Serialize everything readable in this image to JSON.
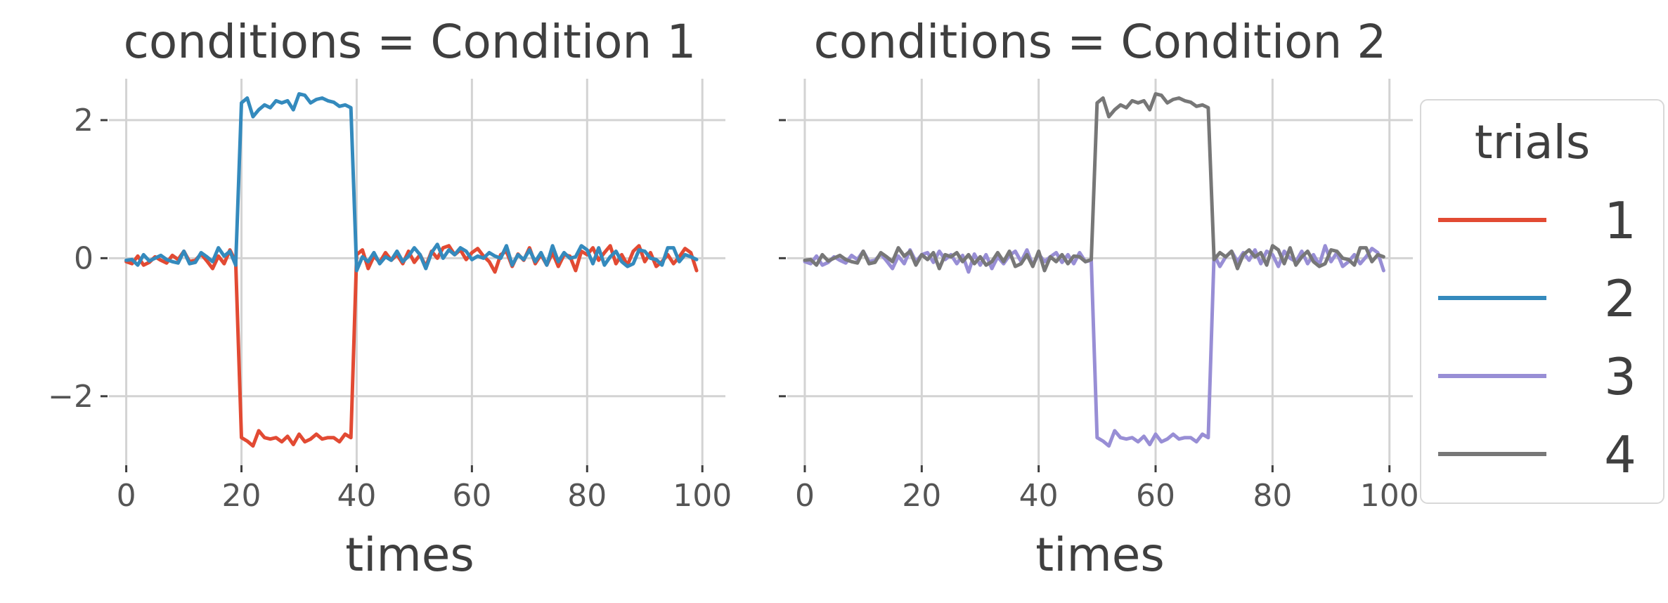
{
  "chart_data": [
    {
      "type": "line",
      "title": "conditions = Condition 1",
      "xlabel": "times",
      "ylabel": "",
      "xlim": [
        -3,
        104
      ],
      "ylim": [
        -3.0,
        2.6
      ],
      "xticks": [
        0,
        20,
        40,
        60,
        80,
        100
      ],
      "xtick_labels": [
        "0",
        "20",
        "40",
        "60",
        "80",
        "100"
      ],
      "yticks": [
        -2,
        0,
        2
      ],
      "ytick_labels": [
        "−2",
        "0",
        "2"
      ],
      "grid": true,
      "series": [
        {
          "name": "1",
          "color": "#e24a33",
          "x": [
            0,
            1,
            2,
            3,
            4,
            5,
            6,
            7,
            8,
            9,
            10,
            11,
            12,
            13,
            14,
            15,
            16,
            17,
            18,
            19,
            20,
            21,
            22,
            23,
            24,
            25,
            26,
            27,
            28,
            29,
            30,
            31,
            32,
            33,
            34,
            35,
            36,
            37,
            38,
            39,
            40,
            41,
            42,
            43,
            44,
            45,
            46,
            47,
            48,
            49,
            50,
            51,
            52,
            53,
            54,
            55,
            56,
            57,
            58,
            59,
            60,
            61,
            62,
            63,
            64,
            65,
            66,
            67,
            68,
            69,
            70,
            71,
            72,
            73,
            74,
            75,
            76,
            77,
            78,
            79,
            80,
            81,
            82,
            83,
            84,
            85,
            86,
            87,
            88,
            89,
            90,
            91,
            92,
            93,
            94,
            95,
            96,
            97,
            98,
            99
          ],
          "y": [
            -0.05,
            -0.08,
            0.03,
            -0.1,
            -0.06,
            0.02,
            -0.03,
            -0.07,
            0.04,
            -0.02,
            0.1,
            -0.05,
            -0.03,
            0.06,
            -0.04,
            -0.15,
            0.03,
            -0.08,
            0.12,
            -0.05,
            -2.6,
            -2.65,
            -2.72,
            -2.5,
            -2.6,
            -2.62,
            -2.6,
            -2.66,
            -2.58,
            -2.7,
            -2.55,
            -2.66,
            -2.62,
            -2.55,
            -2.62,
            -2.6,
            -2.6,
            -2.66,
            -2.55,
            -2.6,
            0.05,
            0.12,
            -0.15,
            0.03,
            -0.06,
            0.08,
            -0.03,
            0.05,
            -0.08,
            0.1,
            -0.06,
            0.05,
            -0.12,
            0.1,
            0.0,
            0.15,
            0.18,
            0.05,
            0.12,
            -0.02,
            0.08,
            0.14,
            0.03,
            -0.05,
            -0.2,
            0.05,
            0.1,
            -0.12,
            0.06,
            -0.03,
            0.15,
            -0.08,
            0.05,
            -0.1,
            0.08,
            -0.12,
            0.05,
            0.03,
            -0.18,
            0.1,
            0.05,
            0.15,
            -0.03,
            0.08,
            0.18,
            -0.08,
            0.05,
            -0.1,
            0.1,
            0.18,
            -0.05,
            0.08,
            -0.12,
            -0.05,
            0.05,
            -0.08,
            0.02,
            0.14,
            0.08,
            -0.18
          ]
        },
        {
          "name": "2",
          "color": "#348abd",
          "x": [
            0,
            1,
            2,
            3,
            4,
            5,
            6,
            7,
            8,
            9,
            10,
            11,
            12,
            13,
            14,
            15,
            16,
            17,
            18,
            19,
            20,
            21,
            22,
            23,
            24,
            25,
            26,
            27,
            28,
            29,
            30,
            31,
            32,
            33,
            34,
            35,
            36,
            37,
            38,
            39,
            40,
            41,
            42,
            43,
            44,
            45,
            46,
            47,
            48,
            49,
            50,
            51,
            52,
            53,
            54,
            55,
            56,
            57,
            58,
            59,
            60,
            61,
            62,
            63,
            64,
            65,
            66,
            67,
            68,
            69,
            70,
            71,
            72,
            73,
            74,
            75,
            76,
            77,
            78,
            79,
            80,
            81,
            82,
            83,
            84,
            85,
            86,
            87,
            88,
            89,
            90,
            91,
            92,
            93,
            94,
            95,
            96,
            97,
            98,
            99
          ],
          "y": [
            -0.03,
            -0.02,
            -0.1,
            0.05,
            -0.04,
            0.0,
            0.04,
            -0.02,
            -0.05,
            -0.07,
            0.1,
            -0.08,
            -0.06,
            0.08,
            0.02,
            -0.05,
            0.15,
            0.03,
            0.1,
            -0.1,
            2.25,
            2.32,
            2.05,
            2.15,
            2.22,
            2.18,
            2.28,
            2.25,
            2.28,
            2.15,
            2.38,
            2.36,
            2.25,
            2.3,
            2.32,
            2.28,
            2.26,
            2.2,
            2.22,
            2.18,
            -0.18,
            0.02,
            -0.05,
            0.08,
            -0.08,
            0.02,
            -0.03,
            0.1,
            -0.05,
            0.03,
            0.15,
            0.05,
            -0.15,
            0.08,
            0.2,
            0.0,
            0.12,
            0.05,
            0.15,
            0.1,
            -0.02,
            0.03,
            0.0,
            0.08,
            0.03,
            0.0,
            0.18,
            -0.1,
            0.05,
            -0.02,
            0.12,
            -0.05,
            0.08,
            -0.1,
            0.18,
            -0.05,
            0.08,
            0.0,
            0.02,
            0.18,
            0.12,
            -0.08,
            0.15,
            -0.1,
            0.02,
            0.1,
            -0.05,
            -0.12,
            -0.08,
            0.12,
            0.1,
            0.0,
            -0.02,
            -0.1,
            0.15,
            0.15,
            -0.05,
            0.05,
            0.02,
            -0.02
          ]
        }
      ]
    },
    {
      "type": "line",
      "title": "conditions = Condition 2",
      "xlabel": "times",
      "ylabel": "",
      "xlim": [
        -3,
        104
      ],
      "ylim": [
        -3.0,
        2.6
      ],
      "xticks": [
        0,
        20,
        40,
        60,
        80,
        100
      ],
      "xtick_labels": [
        "0",
        "20",
        "40",
        "60",
        "80",
        "100"
      ],
      "yticks": [
        -2,
        0,
        2
      ],
      "grid": true,
      "series": [
        {
          "name": "3",
          "color": "#988ed5",
          "x": [
            0,
            1,
            2,
            3,
            4,
            5,
            6,
            7,
            8,
            9,
            10,
            11,
            12,
            13,
            14,
            15,
            16,
            17,
            18,
            19,
            20,
            21,
            22,
            23,
            24,
            25,
            26,
            27,
            28,
            29,
            30,
            31,
            32,
            33,
            34,
            35,
            36,
            37,
            38,
            39,
            40,
            41,
            42,
            43,
            44,
            45,
            46,
            47,
            48,
            49,
            50,
            51,
            52,
            53,
            54,
            55,
            56,
            57,
            58,
            59,
            60,
            61,
            62,
            63,
            64,
            65,
            66,
            67,
            68,
            69,
            70,
            71,
            72,
            73,
            74,
            75,
            76,
            77,
            78,
            79,
            80,
            81,
            82,
            83,
            84,
            85,
            86,
            87,
            88,
            89,
            90,
            91,
            92,
            93,
            94,
            95,
            96,
            97,
            98,
            99
          ],
          "y": [
            -0.05,
            -0.08,
            0.03,
            -0.1,
            -0.06,
            0.02,
            -0.03,
            -0.07,
            0.04,
            -0.02,
            0.1,
            -0.05,
            -0.03,
            0.06,
            -0.04,
            -0.15,
            0.03,
            -0.08,
            0.12,
            -0.05,
            0.05,
            0.08,
            -0.06,
            0.1,
            -0.02,
            0.05,
            -0.08,
            0.04,
            -0.2,
            0.06,
            -0.1,
            0.05,
            -0.15,
            0.02,
            -0.08,
            0.04,
            0.1,
            -0.05,
            0.12,
            -0.1,
            0.06,
            -0.05,
            0.02,
            0.08,
            -0.06,
            0.05,
            -0.08,
            0.08,
            -0.05,
            -0.03,
            -2.6,
            -2.65,
            -2.72,
            -2.5,
            -2.6,
            -2.62,
            -2.6,
            -2.66,
            -2.58,
            -2.7,
            -2.55,
            -2.66,
            -2.62,
            -2.55,
            -2.62,
            -2.6,
            -2.6,
            -2.66,
            -2.55,
            -2.6,
            0.05,
            -0.12,
            0.02,
            0.1,
            -0.05,
            0.08,
            -0.03,
            0.12,
            -0.08,
            0.1,
            0.05,
            -0.12,
            0.1,
            0.0,
            -0.05,
            0.1,
            -0.08,
            0.05,
            -0.1,
            0.18,
            -0.05,
            0.08,
            -0.12,
            -0.05,
            0.05,
            -0.08,
            0.02,
            0.14,
            0.08,
            -0.18
          ]
        },
        {
          "name": "4",
          "color": "#777777",
          "x": [
            0,
            1,
            2,
            3,
            4,
            5,
            6,
            7,
            8,
            9,
            10,
            11,
            12,
            13,
            14,
            15,
            16,
            17,
            18,
            19,
            20,
            21,
            22,
            23,
            24,
            25,
            26,
            27,
            28,
            29,
            30,
            31,
            32,
            33,
            34,
            35,
            36,
            37,
            38,
            39,
            40,
            41,
            42,
            43,
            44,
            45,
            46,
            47,
            48,
            49,
            50,
            51,
            52,
            53,
            54,
            55,
            56,
            57,
            58,
            59,
            60,
            61,
            62,
            63,
            64,
            65,
            66,
            67,
            68,
            69,
            70,
            71,
            72,
            73,
            74,
            75,
            76,
            77,
            78,
            79,
            80,
            81,
            82,
            83,
            84,
            85,
            86,
            87,
            88,
            89,
            90,
            91,
            92,
            93,
            94,
            95,
            96,
            97,
            98,
            99
          ],
          "y": [
            -0.03,
            -0.02,
            -0.1,
            0.05,
            -0.04,
            0.0,
            0.04,
            -0.02,
            -0.05,
            -0.07,
            0.1,
            -0.08,
            -0.06,
            0.08,
            0.02,
            -0.05,
            0.15,
            0.03,
            0.1,
            -0.1,
            0.05,
            -0.02,
            0.08,
            -0.15,
            0.05,
            0.02,
            0.08,
            -0.05,
            0.05,
            -0.08,
            0.02,
            -0.1,
            -0.05,
            0.08,
            -0.05,
            0.1,
            -0.12,
            -0.08,
            0.05,
            -0.12,
            0.1,
            -0.18,
            0.02,
            -0.05,
            0.05,
            -0.08,
            0.03,
            0.02,
            -0.05,
            -0.02,
            2.25,
            2.32,
            2.05,
            2.15,
            2.22,
            2.18,
            2.28,
            2.25,
            2.28,
            2.15,
            2.38,
            2.36,
            2.25,
            2.3,
            2.32,
            2.28,
            2.26,
            2.2,
            2.22,
            2.18,
            -0.02,
            0.08,
            0.02,
            0.1,
            -0.15,
            0.05,
            0.12,
            0.02,
            0.08,
            -0.1,
            0.18,
            0.12,
            -0.08,
            0.15,
            -0.1,
            0.02,
            0.1,
            -0.05,
            -0.12,
            -0.08,
            0.12,
            0.1,
            0.0,
            -0.02,
            -0.1,
            0.15,
            0.15,
            -0.05,
            0.05,
            0.02
          ]
        }
      ]
    }
  ],
  "legend": {
    "title": "trials",
    "placement": "right",
    "entries": [
      {
        "label": "1",
        "color": "#e24a33"
      },
      {
        "label": "2",
        "color": "#348abd"
      },
      {
        "label": "3",
        "color": "#988ed5"
      },
      {
        "label": "4",
        "color": "#777777"
      }
    ]
  }
}
